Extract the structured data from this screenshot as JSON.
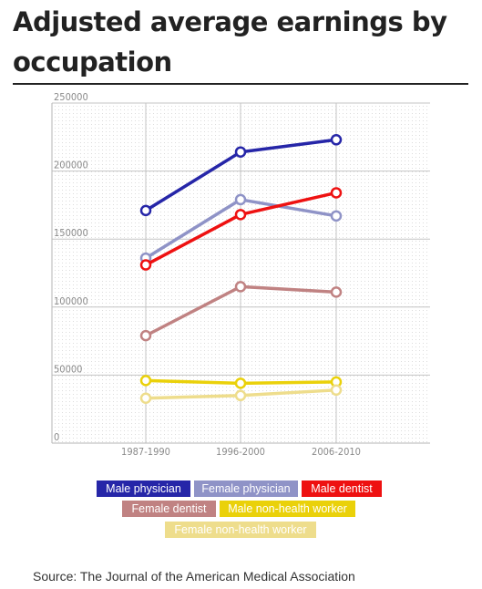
{
  "title": "Adjusted average earnings by occupation",
  "source": "Source: The Journal of the American Medical Association",
  "chart_data": {
    "type": "line",
    "title": "Adjusted average earnings by occupation",
    "xlabel": "",
    "ylabel": "",
    "categories": [
      "1987-1990",
      "1996-2000",
      "2006-2010"
    ],
    "ylim": [
      0,
      250000
    ],
    "yticks": [
      0,
      50000,
      100000,
      150000,
      200000,
      250000
    ],
    "grid": true,
    "legend_placement": "bottom",
    "series": [
      {
        "name": "Male physician",
        "color": "#2626a8",
        "values": [
          171000,
          214000,
          223000
        ]
      },
      {
        "name": "Female physician",
        "color": "#8f93c7",
        "values": [
          136000,
          179000,
          167000
        ]
      },
      {
        "name": "Male dentist",
        "color": "#ee1111",
        "values": [
          131000,
          168000,
          184000
        ]
      },
      {
        "name": "Female dentist",
        "color": "#c08282",
        "values": [
          79000,
          115000,
          111000
        ]
      },
      {
        "name": "Male non-health worker",
        "color": "#ead10a",
        "values": [
          46000,
          44000,
          45000
        ]
      },
      {
        "name": "Female non-health worker",
        "color": "#eedd8c",
        "values": [
          33000,
          35000,
          39000
        ]
      }
    ]
  }
}
